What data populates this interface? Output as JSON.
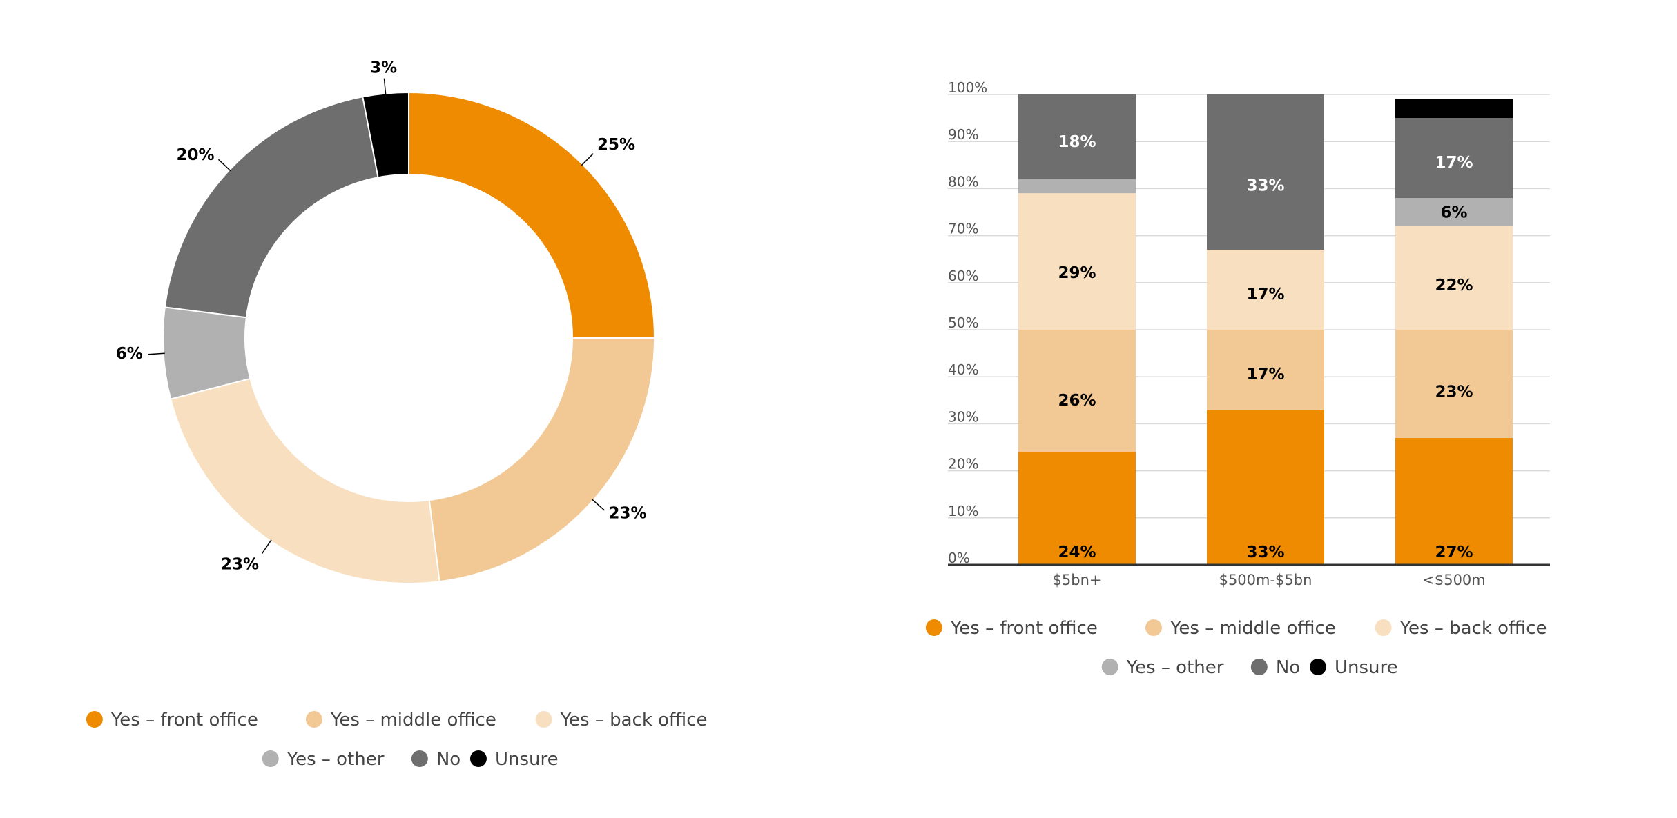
{
  "colors": {
    "front_office": "#ef8b00",
    "middle_office": "#f2c894",
    "back_office": "#f8dfbf",
    "other": "#b1b1b1",
    "no": "#6e6e6e",
    "unsure": "#000000",
    "grid": "#d9d9d9",
    "axis": "#333333"
  },
  "legend": {
    "items": [
      {
        "label": "Yes – front office",
        "color": "#ef8b00"
      },
      {
        "label": "Yes – middle office",
        "color": "#f2c894"
      },
      {
        "label": "Yes – back office",
        "color": "#f8dfbf"
      },
      {
        "label": "Yes – other",
        "color": "#b1b1b1"
      },
      {
        "label": "No",
        "color": "#6e6e6e"
      },
      {
        "label": "Unsure",
        "color": "#000000"
      }
    ]
  },
  "chart_data": [
    {
      "type": "pie",
      "style": "donut",
      "slices": [
        {
          "name": "Yes – front office",
          "value": 25,
          "label": "25%",
          "color": "#ef8b00"
        },
        {
          "name": "Yes – middle office",
          "value": 23,
          "label": "23%",
          "color": "#f2c894"
        },
        {
          "name": "Yes – back office",
          "value": 23,
          "label": "23%",
          "color": "#f8dfbf"
        },
        {
          "name": "Yes – other",
          "value": 6,
          "label": "6%",
          "color": "#b1b1b1"
        },
        {
          "name": "No",
          "value": 20,
          "label": "20%",
          "color": "#6e6e6e"
        },
        {
          "name": "Unsure",
          "value": 3,
          "label": "3%",
          "color": "#000000"
        }
      ],
      "legend_position": "bottom"
    },
    {
      "type": "bar",
      "stacked": true,
      "categories": [
        "$5bn+",
        "$500m-$5bn",
        "<$500m"
      ],
      "series": [
        {
          "name": "Yes – front office",
          "color": "#ef8b00",
          "values": [
            24,
            33,
            27
          ],
          "labels": [
            "24%",
            "33%",
            "27%"
          ],
          "label_color": "#000000"
        },
        {
          "name": "Yes – middle office",
          "color": "#f2c894",
          "values": [
            26,
            17,
            23
          ],
          "labels": [
            "26%",
            "17%",
            "23%"
          ],
          "label_color": "#000000"
        },
        {
          "name": "Yes – back office",
          "color": "#f8dfbf",
          "values": [
            29,
            17,
            22
          ],
          "labels": [
            "29%",
            "17%",
            "22%"
          ],
          "label_color": "#000000"
        },
        {
          "name": "Yes – other",
          "color": "#b1b1b1",
          "values": [
            3,
            0,
            6
          ],
          "labels": [
            "",
            "",
            "6%"
          ],
          "label_color": "#000000"
        },
        {
          "name": "No",
          "color": "#6e6e6e",
          "values": [
            18,
            33,
            17
          ],
          "labels": [
            "18%",
            "33%",
            "17%"
          ],
          "label_color": "#ffffff"
        },
        {
          "name": "Unsure",
          "color": "#000000",
          "values": [
            0,
            0,
            4
          ],
          "labels": [
            "",
            "",
            ""
          ],
          "label_color": "#ffffff"
        }
      ],
      "y_ticks": [
        "0%",
        "10%",
        "20%",
        "30%",
        "40%",
        "50%",
        "60%",
        "70%",
        "80%",
        "90%",
        "100%"
      ],
      "ylim": [
        0,
        100
      ],
      "grid": true,
      "legend_position": "bottom"
    }
  ]
}
